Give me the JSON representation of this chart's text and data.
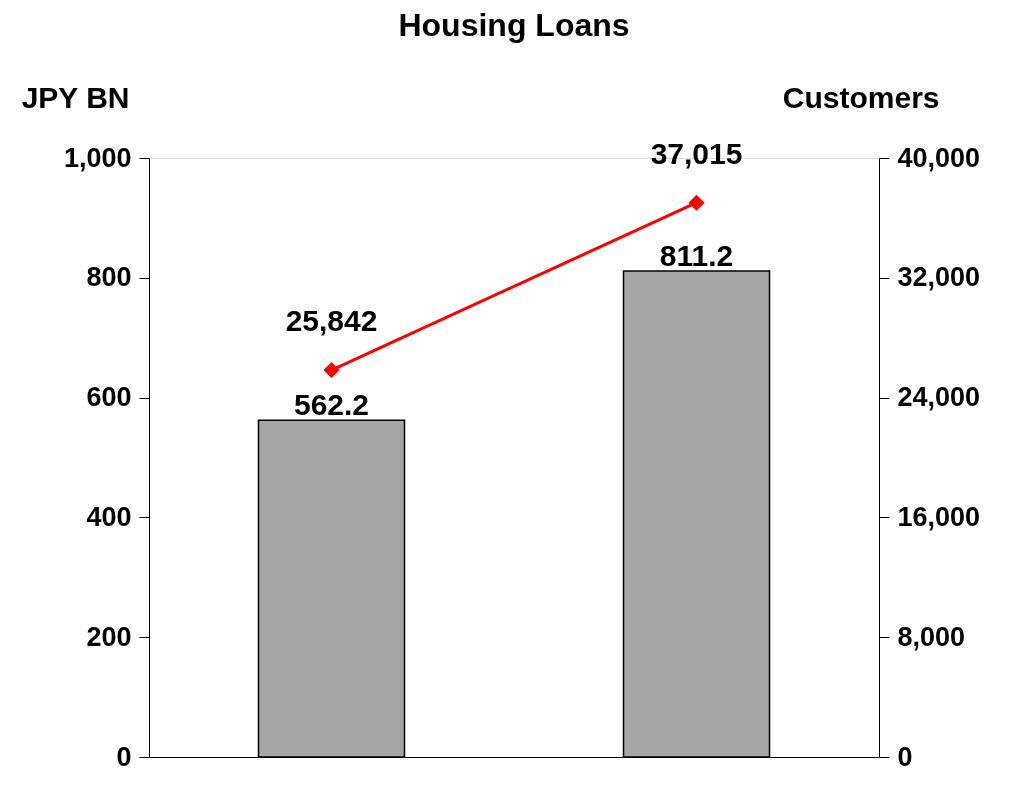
{
  "chart_data": {
    "type": "bar",
    "title": "Housing Loans",
    "ylabel": "JPY BN",
    "y2label": "Customers",
    "categories": [
      null,
      null
    ],
    "series": [
      {
        "color": "#a6a6a6",
        "values": [
          562.2,
          811.2
        ],
        "value_labels": [
          "562.2",
          "811.2"
        ]
      },
      {
        "type": "line",
        "axis": "y2",
        "color": "#ff0000",
        "values": [
          25842,
          37015
        ],
        "marker": "diamond",
        "value_labels": [
          "25,842",
          "37,015"
        ]
      }
    ],
    "ylim": [
      0,
      1000
    ],
    "yticks": [
      0,
      200,
      400,
      600,
      800,
      {
        "value": 1000,
        "label": "1,000"
      }
    ],
    "y2lim": [
      0,
      40000
    ],
    "y2ticks": [
      0,
      {
        "value": 8000,
        "label": "8,000"
      },
      {
        "value": 16000,
        "label": "16,000"
      },
      {
        "value": 24000,
        "label": "24,000"
      },
      {
        "value": 32000,
        "label": "32,000"
      },
      {
        "value": 40000,
        "label": "40,000"
      }
    ]
  }
}
